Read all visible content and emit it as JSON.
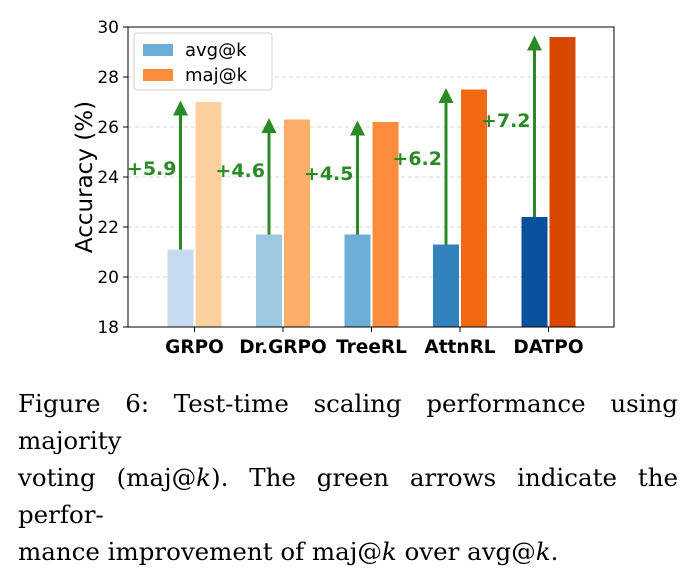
{
  "chart_data": {
    "type": "bar",
    "categories": [
      "GRPO",
      "Dr.GRPO",
      "TreeRL",
      "AttnRL",
      "DATPO"
    ],
    "series": [
      {
        "name": "avg@k",
        "values": [
          21.1,
          21.7,
          21.7,
          21.3,
          22.4
        ],
        "colors": [
          "#c6dbef",
          "#9ecae1",
          "#6baed6",
          "#3182bd",
          "#08519c"
        ]
      },
      {
        "name": "maj@k",
        "values": [
          27.0,
          26.3,
          26.2,
          27.5,
          29.6
        ],
        "colors": [
          "#fdd0a2",
          "#fdae6b",
          "#fd8d3c",
          "#f16913",
          "#d94801"
        ]
      }
    ],
    "annotations": [
      "+5.9",
      "+4.6",
      "+4.5",
      "+6.2",
      "+7.2"
    ],
    "annotation_color": "#2a8a26",
    "ylabel": "Accuracy (%)",
    "xlabel": "",
    "ylim": [
      18,
      30
    ],
    "yticks": [
      "18",
      "20",
      "22",
      "24",
      "26",
      "28",
      "30"
    ],
    "grid": "y-dashed",
    "legend": "top-left",
    "legend_colors": [
      "#6baed6",
      "#fd8d3c"
    ]
  },
  "caption": {
    "line1": "Figure 6: Test-time scaling performance using majority",
    "line2a": "voting (maj@",
    "k": "k",
    "line2b": "). The green arrows indicate the perfor-",
    "line3a": "mance improvement of maj@",
    "line3b": " over avg@",
    "line3c": "."
  }
}
